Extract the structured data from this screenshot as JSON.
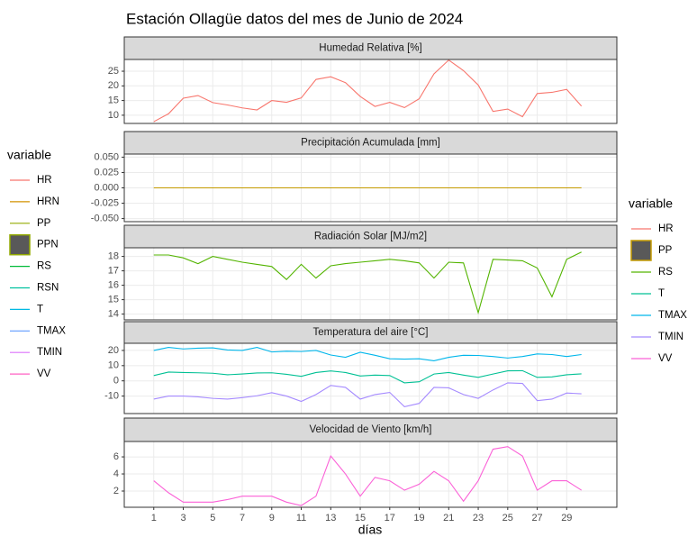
{
  "title": "Estación Ollagüe datos del mes de Junio de 2024",
  "x_label": "días",
  "chart_data": [
    {
      "type": "line",
      "title": "Humedad Relativa [%]",
      "x": [
        1,
        2,
        3,
        4,
        5,
        6,
        7,
        8,
        9,
        10,
        11,
        12,
        13,
        14,
        15,
        16,
        17,
        18,
        19,
        20,
        21,
        22,
        23,
        24,
        25,
        26,
        27,
        28,
        29,
        30
      ],
      "xlim": [
        -1,
        32.4
      ],
      "xticks": [
        1,
        3,
        5,
        7,
        9,
        11,
        13,
        15,
        17,
        19,
        21,
        23,
        25,
        27,
        29
      ],
      "ylim": [
        7.2,
        29
      ],
      "yticks": [
        10,
        15,
        20,
        25
      ],
      "grid": true,
      "series": [
        {
          "color": "#F8766D",
          "values": [
            7.8,
            10.5,
            15.8,
            16.7,
            14.3,
            13.5,
            12.5,
            11.8,
            15,
            14.4,
            15.9,
            22.2,
            23.1,
            21.1,
            16.4,
            13,
            14.4,
            12.6,
            15.6,
            24.1,
            28.8,
            25.2,
            20.3,
            11.3,
            12.1,
            9.5,
            17.4,
            17.8,
            18.8,
            13.1
          ]
        }
      ]
    },
    {
      "type": "line",
      "title": "Precipitación Acumulada [mm]",
      "x": [
        1,
        2,
        3,
        4,
        5,
        6,
        7,
        8,
        9,
        10,
        11,
        12,
        13,
        14,
        15,
        16,
        17,
        18,
        19,
        20,
        21,
        22,
        23,
        24,
        25,
        26,
        27,
        28,
        29,
        30
      ],
      "xlim": [
        -1,
        32.4
      ],
      "xticks": [
        1,
        3,
        5,
        7,
        9,
        11,
        13,
        15,
        17,
        19,
        21,
        23,
        25,
        27,
        29
      ],
      "ylim": [
        -0.055,
        0.055
      ],
      "yticks": [
        {
          "value": -0.05,
          "label": "-0.050"
        },
        {
          "value": -0.025,
          "label": "-0.025"
        },
        {
          "value": 0,
          "label": "0.000"
        },
        {
          "value": 0.025,
          "label": "0.025"
        },
        {
          "value": 0.05,
          "label": "0.050"
        }
      ],
      "grid": true,
      "series": [
        {
          "color": "#C49A00",
          "values": [
            0,
            0,
            0,
            0,
            0,
            0,
            0,
            0,
            0,
            0,
            0,
            0,
            0,
            0,
            0,
            0,
            0,
            0,
            0,
            0,
            0,
            0,
            0,
            0,
            0,
            0,
            0,
            0,
            0,
            0
          ]
        }
      ]
    },
    {
      "type": "line",
      "title": "Radiación Solar [MJ/m2]",
      "x": [
        1,
        2,
        3,
        4,
        5,
        6,
        7,
        8,
        9,
        10,
        11,
        12,
        13,
        14,
        15,
        16,
        17,
        18,
        19,
        20,
        21,
        22,
        23,
        24,
        25,
        26,
        27,
        28,
        29,
        30
      ],
      "xlim": [
        -1,
        32.4
      ],
      "xticks": [
        1,
        3,
        5,
        7,
        9,
        11,
        13,
        15,
        17,
        19,
        21,
        23,
        25,
        27,
        29
      ],
      "ylim": [
        13.6,
        18.6
      ],
      "yticks": [
        14,
        15,
        16,
        17,
        18
      ],
      "grid": true,
      "series": [
        {
          "color": "#53B400",
          "values": [
            18.1,
            18.1,
            17.9,
            17.5,
            18,
            17.8,
            17.6,
            17.45,
            17.3,
            16.4,
            17.45,
            16.5,
            17.35,
            17.5,
            17.6,
            17.7,
            17.8,
            17.7,
            17.55,
            16.5,
            17.6,
            17.55,
            14.1,
            17.8,
            17.75,
            17.7,
            17.2,
            15.2,
            17.8,
            18.3
          ]
        }
      ]
    },
    {
      "type": "line",
      "title": "Temperatura del aire [°C]",
      "x": [
        1,
        2,
        3,
        4,
        5,
        6,
        7,
        8,
        9,
        10,
        11,
        12,
        13,
        14,
        15,
        16,
        17,
        18,
        19,
        20,
        21,
        22,
        23,
        24,
        25,
        26,
        27,
        28,
        29,
        30
      ],
      "xlim": [
        -1,
        32.4
      ],
      "xticks": [
        1,
        3,
        5,
        7,
        9,
        11,
        13,
        15,
        17,
        19,
        21,
        23,
        25,
        27,
        29
      ],
      "ylim": [
        -21.5,
        24.7
      ],
      "yticks": [
        -10,
        0,
        10,
        20
      ],
      "grid": true,
      "series": [
        {
          "color": "#00C094",
          "values": [
            3.5,
            5.8,
            5.5,
            5.3,
            5,
            4,
            4.5,
            5.2,
            5.3,
            4.3,
            3,
            5.5,
            6.5,
            5.5,
            3.2,
            3.8,
            3.5,
            -1.3,
            -0.6,
            4.5,
            5.5,
            3.8,
            2.3,
            4.5,
            6.6,
            6.7,
            2.3,
            2.6,
            4,
            4.6
          ]
        },
        {
          "color": "#00B6EB",
          "values": [
            20,
            22,
            21,
            21.5,
            21.7,
            20.3,
            20,
            22,
            19,
            19.5,
            19.3,
            20,
            17,
            15.5,
            18.8,
            16.8,
            14.5,
            14.3,
            14.5,
            13.2,
            15.5,
            16.8,
            16.7,
            16,
            15,
            16,
            17.7,
            17.3,
            16,
            17.3
          ]
        },
        {
          "color": "#A58AFF",
          "values": [
            -12,
            -10,
            -10,
            -10.5,
            -11.5,
            -12,
            -11,
            -9.8,
            -7.8,
            -10,
            -13.5,
            -9,
            -3,
            -4.3,
            -12,
            -9,
            -7.6,
            -17,
            -14.8,
            -4.3,
            -4.6,
            -9,
            -11.5,
            -6,
            -1.3,
            -1.7,
            -13,
            -12,
            -8,
            -8.5
          ]
        }
      ]
    },
    {
      "type": "line",
      "title": "Velocidad de Viento [km/h]",
      "x": [
        1,
        2,
        3,
        4,
        5,
        6,
        7,
        8,
        9,
        10,
        11,
        12,
        13,
        14,
        15,
        16,
        17,
        18,
        19,
        20,
        21,
        22,
        23,
        24,
        25,
        26,
        27,
        28,
        29,
        30
      ],
      "xlim": [
        -1,
        32.4
      ],
      "xticks": [
        1,
        3,
        5,
        7,
        9,
        11,
        13,
        15,
        17,
        19,
        21,
        23,
        25,
        27,
        29
      ],
      "ylim": [
        0.1,
        7.8
      ],
      "yticks": [
        2,
        4,
        6
      ],
      "grid": true,
      "series": [
        {
          "color": "#FB61D7",
          "values": [
            3.2,
            1.8,
            0.7,
            0.7,
            0.7,
            1,
            1.4,
            1.4,
            1.4,
            0.7,
            0.3,
            1.4,
            6.1,
            4,
            1.4,
            3.6,
            3.2,
            2.1,
            2.8,
            4.3,
            3.2,
            0.8,
            3.2,
            6.9,
            7.2,
            6.1,
            2.1,
            3.2,
            3.2,
            2.1
          ]
        }
      ]
    }
  ],
  "legends": [
    {
      "title": "variable",
      "entries": [
        {
          "name": "HR",
          "color": "#F8766D"
        },
        {
          "name": "HRN",
          "color": "#D39200"
        },
        {
          "name": "PP",
          "color": "#93AA00"
        },
        {
          "name": "PPN",
          "color": "#93AA00",
          "shape": "box"
        },
        {
          "name": "RS",
          "color": "#00BA38"
        },
        {
          "name": "RSN",
          "color": "#00C19F"
        },
        {
          "name": "T",
          "color": "#00B9E3"
        },
        {
          "name": "TMAX",
          "color": "#619CFF"
        },
        {
          "name": "TMIN",
          "color": "#DB72FB"
        },
        {
          "name": "VV",
          "color": "#FF61C3"
        }
      ]
    },
    {
      "title": "variable",
      "entries": [
        {
          "name": "HR",
          "color": "#F8766D"
        },
        {
          "name": "PP",
          "color": "#C49A00",
          "shape": "box"
        },
        {
          "name": "RS",
          "color": "#53B400"
        },
        {
          "name": "T",
          "color": "#00C094"
        },
        {
          "name": "TMAX",
          "color": "#00B6EB"
        },
        {
          "name": "TMIN",
          "color": "#A58AFF"
        },
        {
          "name": "VV",
          "color": "#FB61D7"
        }
      ]
    }
  ]
}
